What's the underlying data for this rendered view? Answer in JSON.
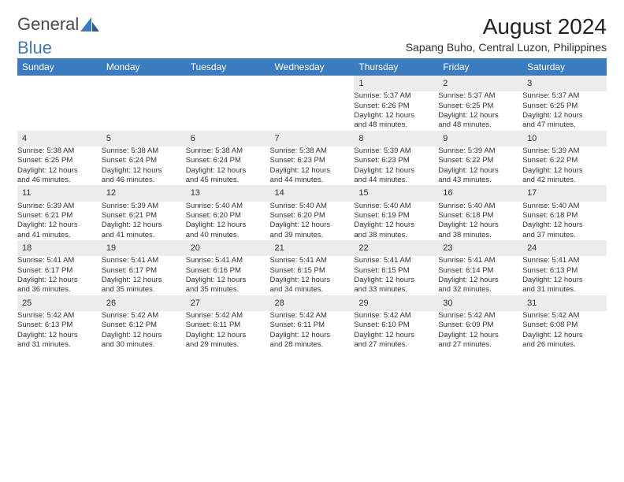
{
  "logo": {
    "text1": "General",
    "text2": "Blue"
  },
  "title": "August 2024",
  "location": "Sapang Buho, Central Luzon, Philippines",
  "colors": {
    "header_bg": "#3a7cbf",
    "header_text": "#ffffff",
    "daynum_bg": "#ececec",
    "week_border": "#3a7cbf",
    "text": "#333333",
    "background": "#ffffff"
  },
  "weekdays": [
    "Sunday",
    "Monday",
    "Tuesday",
    "Wednesday",
    "Thursday",
    "Friday",
    "Saturday"
  ],
  "weeks": [
    [
      null,
      null,
      null,
      null,
      {
        "n": "1",
        "sunrise": "Sunrise: 5:37 AM",
        "sunset": "Sunset: 6:26 PM",
        "daylight1": "Daylight: 12 hours",
        "daylight2": "and 48 minutes."
      },
      {
        "n": "2",
        "sunrise": "Sunrise: 5:37 AM",
        "sunset": "Sunset: 6:25 PM",
        "daylight1": "Daylight: 12 hours",
        "daylight2": "and 48 minutes."
      },
      {
        "n": "3",
        "sunrise": "Sunrise: 5:37 AM",
        "sunset": "Sunset: 6:25 PM",
        "daylight1": "Daylight: 12 hours",
        "daylight2": "and 47 minutes."
      }
    ],
    [
      {
        "n": "4",
        "sunrise": "Sunrise: 5:38 AM",
        "sunset": "Sunset: 6:25 PM",
        "daylight1": "Daylight: 12 hours",
        "daylight2": "and 46 minutes."
      },
      {
        "n": "5",
        "sunrise": "Sunrise: 5:38 AM",
        "sunset": "Sunset: 6:24 PM",
        "daylight1": "Daylight: 12 hours",
        "daylight2": "and 46 minutes."
      },
      {
        "n": "6",
        "sunrise": "Sunrise: 5:38 AM",
        "sunset": "Sunset: 6:24 PM",
        "daylight1": "Daylight: 12 hours",
        "daylight2": "and 45 minutes."
      },
      {
        "n": "7",
        "sunrise": "Sunrise: 5:38 AM",
        "sunset": "Sunset: 6:23 PM",
        "daylight1": "Daylight: 12 hours",
        "daylight2": "and 44 minutes."
      },
      {
        "n": "8",
        "sunrise": "Sunrise: 5:39 AM",
        "sunset": "Sunset: 6:23 PM",
        "daylight1": "Daylight: 12 hours",
        "daylight2": "and 44 minutes."
      },
      {
        "n": "9",
        "sunrise": "Sunrise: 5:39 AM",
        "sunset": "Sunset: 6:22 PM",
        "daylight1": "Daylight: 12 hours",
        "daylight2": "and 43 minutes."
      },
      {
        "n": "10",
        "sunrise": "Sunrise: 5:39 AM",
        "sunset": "Sunset: 6:22 PM",
        "daylight1": "Daylight: 12 hours",
        "daylight2": "and 42 minutes."
      }
    ],
    [
      {
        "n": "11",
        "sunrise": "Sunrise: 5:39 AM",
        "sunset": "Sunset: 6:21 PM",
        "daylight1": "Daylight: 12 hours",
        "daylight2": "and 41 minutes."
      },
      {
        "n": "12",
        "sunrise": "Sunrise: 5:39 AM",
        "sunset": "Sunset: 6:21 PM",
        "daylight1": "Daylight: 12 hours",
        "daylight2": "and 41 minutes."
      },
      {
        "n": "13",
        "sunrise": "Sunrise: 5:40 AM",
        "sunset": "Sunset: 6:20 PM",
        "daylight1": "Daylight: 12 hours",
        "daylight2": "and 40 minutes."
      },
      {
        "n": "14",
        "sunrise": "Sunrise: 5:40 AM",
        "sunset": "Sunset: 6:20 PM",
        "daylight1": "Daylight: 12 hours",
        "daylight2": "and 39 minutes."
      },
      {
        "n": "15",
        "sunrise": "Sunrise: 5:40 AM",
        "sunset": "Sunset: 6:19 PM",
        "daylight1": "Daylight: 12 hours",
        "daylight2": "and 38 minutes."
      },
      {
        "n": "16",
        "sunrise": "Sunrise: 5:40 AM",
        "sunset": "Sunset: 6:18 PM",
        "daylight1": "Daylight: 12 hours",
        "daylight2": "and 38 minutes."
      },
      {
        "n": "17",
        "sunrise": "Sunrise: 5:40 AM",
        "sunset": "Sunset: 6:18 PM",
        "daylight1": "Daylight: 12 hours",
        "daylight2": "and 37 minutes."
      }
    ],
    [
      {
        "n": "18",
        "sunrise": "Sunrise: 5:41 AM",
        "sunset": "Sunset: 6:17 PM",
        "daylight1": "Daylight: 12 hours",
        "daylight2": "and 36 minutes."
      },
      {
        "n": "19",
        "sunrise": "Sunrise: 5:41 AM",
        "sunset": "Sunset: 6:17 PM",
        "daylight1": "Daylight: 12 hours",
        "daylight2": "and 35 minutes."
      },
      {
        "n": "20",
        "sunrise": "Sunrise: 5:41 AM",
        "sunset": "Sunset: 6:16 PM",
        "daylight1": "Daylight: 12 hours",
        "daylight2": "and 35 minutes."
      },
      {
        "n": "21",
        "sunrise": "Sunrise: 5:41 AM",
        "sunset": "Sunset: 6:15 PM",
        "daylight1": "Daylight: 12 hours",
        "daylight2": "and 34 minutes."
      },
      {
        "n": "22",
        "sunrise": "Sunrise: 5:41 AM",
        "sunset": "Sunset: 6:15 PM",
        "daylight1": "Daylight: 12 hours",
        "daylight2": "and 33 minutes."
      },
      {
        "n": "23",
        "sunrise": "Sunrise: 5:41 AM",
        "sunset": "Sunset: 6:14 PM",
        "daylight1": "Daylight: 12 hours",
        "daylight2": "and 32 minutes."
      },
      {
        "n": "24",
        "sunrise": "Sunrise: 5:41 AM",
        "sunset": "Sunset: 6:13 PM",
        "daylight1": "Daylight: 12 hours",
        "daylight2": "and 31 minutes."
      }
    ],
    [
      {
        "n": "25",
        "sunrise": "Sunrise: 5:42 AM",
        "sunset": "Sunset: 6:13 PM",
        "daylight1": "Daylight: 12 hours",
        "daylight2": "and 31 minutes."
      },
      {
        "n": "26",
        "sunrise": "Sunrise: 5:42 AM",
        "sunset": "Sunset: 6:12 PM",
        "daylight1": "Daylight: 12 hours",
        "daylight2": "and 30 minutes."
      },
      {
        "n": "27",
        "sunrise": "Sunrise: 5:42 AM",
        "sunset": "Sunset: 6:11 PM",
        "daylight1": "Daylight: 12 hours",
        "daylight2": "and 29 minutes."
      },
      {
        "n": "28",
        "sunrise": "Sunrise: 5:42 AM",
        "sunset": "Sunset: 6:11 PM",
        "daylight1": "Daylight: 12 hours",
        "daylight2": "and 28 minutes."
      },
      {
        "n": "29",
        "sunrise": "Sunrise: 5:42 AM",
        "sunset": "Sunset: 6:10 PM",
        "daylight1": "Daylight: 12 hours",
        "daylight2": "and 27 minutes."
      },
      {
        "n": "30",
        "sunrise": "Sunrise: 5:42 AM",
        "sunset": "Sunset: 6:09 PM",
        "daylight1": "Daylight: 12 hours",
        "daylight2": "and 27 minutes."
      },
      {
        "n": "31",
        "sunrise": "Sunrise: 5:42 AM",
        "sunset": "Sunset: 6:08 PM",
        "daylight1": "Daylight: 12 hours",
        "daylight2": "and 26 minutes."
      }
    ]
  ]
}
